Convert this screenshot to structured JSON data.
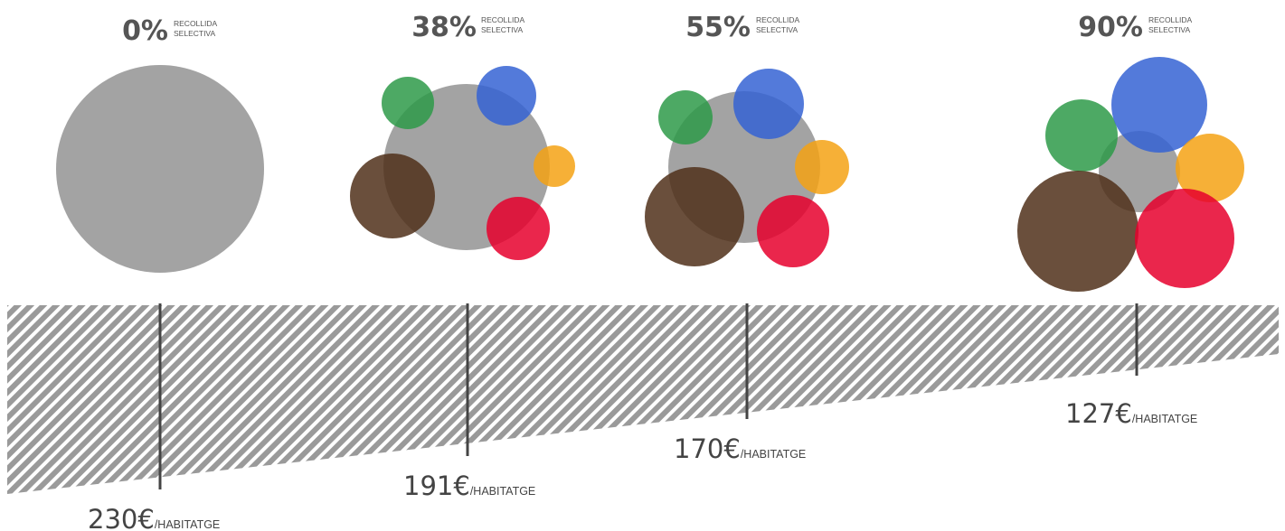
{
  "chart_data": {
    "type": "bubble",
    "categories": [
      "0%",
      "38%",
      "55%",
      "90%"
    ],
    "selective_collection_label": [
      "RECOLLIDA",
      "SELECTIVA"
    ],
    "cost_values": [
      230,
      191,
      170,
      127
    ],
    "cost_currency": "€",
    "cost_unit": "/HABITATGE",
    "colors": {
      "rest": "#999999",
      "paper": "#3563d3",
      "glass": "#2e9a49",
      "packaging": "#f5a214",
      "organic": "#50301a",
      "other": "#e6002d"
    }
  }
}
